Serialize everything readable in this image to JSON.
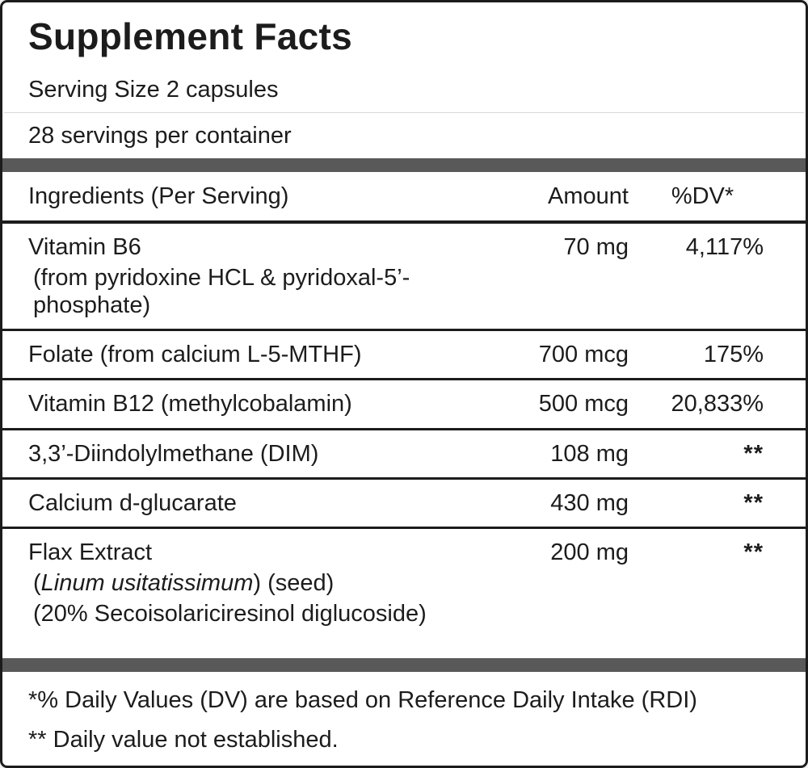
{
  "label": {
    "title": "Supplement Facts",
    "serving_size": "Serving Size 2 capsules",
    "servings_per_container": "28 servings per container",
    "table": {
      "header": {
        "ingredients": "Ingredients (Per Serving)",
        "amount": "Amount",
        "dv": "%DV*"
      },
      "rows": [
        {
          "name": "Vitamin B6",
          "subline": "(from pyridoxine HCL & pyridoxal-5’-phosphate)",
          "amount": "70 mg",
          "dv": "4,117%"
        },
        {
          "name": "Folate (from calcium L-5-MTHF)",
          "amount": "700 mcg",
          "dv": "175%"
        },
        {
          "name": "Vitamin B12 (methylcobalamin)",
          "amount": "500 mcg",
          "dv": "20,833%"
        },
        {
          "name": "3,3’-Diindolylmethane (DIM)",
          "amount": "108 mg",
          "dv": "**"
        },
        {
          "name": "Calcium d-glucarate",
          "amount": "430 mg",
          "dv": "**"
        },
        {
          "name": "Flax Extract",
          "amount": "200 mg",
          "dv": "**",
          "subline1_prefix": "(",
          "subline1_italic": "Linum usitatissimum",
          "subline1_suffix": ") (seed)",
          "subline2": "(20% Secoisolariciresinol diglucoside)"
        }
      ]
    },
    "footnotes": {
      "dv_note": "*% Daily Values (DV) are based on Reference Daily Intake (RDI)",
      "not_established_note": "** Daily value not established."
    }
  }
}
